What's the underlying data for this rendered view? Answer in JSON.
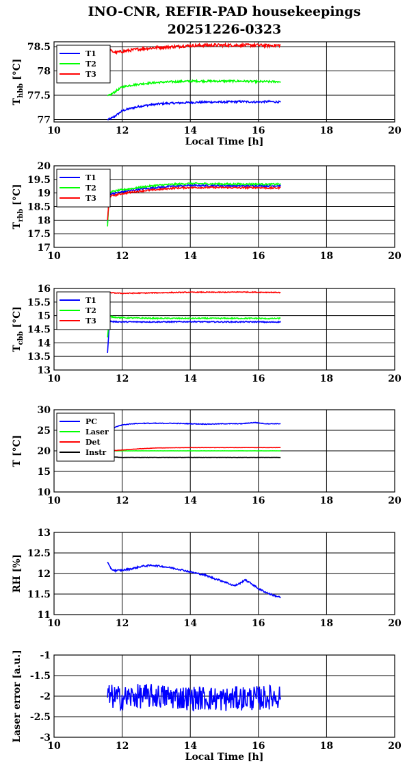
{
  "title_line1": "INO-CNR, REFIR-PAD housekeepings",
  "title_line2": "20251226-0323",
  "colors": {
    "blue": "#0000ff",
    "green": "#00ff00",
    "red": "#ff0000",
    "black": "#000000"
  },
  "chart_data": [
    {
      "type": "line",
      "ylabel_main": "T",
      "ylabel_sub": "hbb",
      "ylabel_unit": "[°C]",
      "xlabel": "Local Time [h]",
      "xlim": [
        10,
        20
      ],
      "ylim": [
        76.95,
        78.6
      ],
      "xticks": [
        "10",
        "12",
        "14",
        "16",
        "18",
        "20"
      ],
      "yticks": [
        {
          "v": 77,
          "label": "77"
        },
        {
          "v": 77.5,
          "label": "77.5"
        },
        {
          "v": 78,
          "label": "78"
        },
        {
          "v": 78.5,
          "label": "78.5"
        }
      ],
      "grid": true,
      "legend": "top-left",
      "series": [
        {
          "name": "T1",
          "color": "blue",
          "x": [
            11.57,
            11.7,
            11.85,
            12.0,
            12.2,
            12.5,
            12.8,
            13.2,
            13.6,
            14.0,
            14.5,
            15.0,
            15.5,
            16.0,
            16.3,
            16.65
          ],
          "y": [
            77.0,
            77.03,
            77.1,
            77.18,
            77.22,
            77.27,
            77.3,
            77.33,
            77.34,
            77.35,
            77.36,
            77.36,
            77.37,
            77.36,
            77.37,
            77.36
          ],
          "noise": 0.02
        },
        {
          "name": "T2",
          "color": "green",
          "x": [
            11.57,
            11.7,
            11.85,
            12.0,
            12.2,
            12.5,
            12.8,
            13.2,
            13.6,
            14.0,
            14.5,
            15.0,
            15.5,
            16.0,
            16.3,
            16.65
          ],
          "y": [
            77.48,
            77.53,
            77.6,
            77.67,
            77.7,
            77.73,
            77.75,
            77.77,
            77.78,
            77.79,
            77.79,
            77.79,
            77.79,
            77.78,
            77.78,
            77.78
          ],
          "noise": 0.02
        },
        {
          "name": "T3",
          "color": "red",
          "x": [
            11.57,
            11.65,
            11.8,
            12.0,
            12.5,
            13.0,
            13.5,
            14.0,
            14.5,
            15.0,
            15.5,
            16.0,
            16.3,
            16.65
          ],
          "y": [
            78.25,
            78.42,
            78.38,
            78.4,
            78.45,
            78.48,
            78.5,
            78.52,
            78.53,
            78.53,
            78.53,
            78.53,
            78.52,
            78.53
          ],
          "noise": 0.03
        }
      ]
    },
    {
      "type": "line",
      "ylabel_main": "T",
      "ylabel_sub": "rbb",
      "ylabel_unit": "[°C]",
      "xlabel": "",
      "xlim": [
        10,
        20
      ],
      "ylim": [
        17,
        20
      ],
      "xticks": [
        "10",
        "12",
        "14",
        "16",
        "18",
        "20"
      ],
      "yticks": [
        {
          "v": 17,
          "label": "17"
        },
        {
          "v": 17.5,
          "label": "17.5"
        },
        {
          "v": 18,
          "label": "18"
        },
        {
          "v": 18.5,
          "label": "18.5"
        },
        {
          "v": 19,
          "label": "19"
        },
        {
          "v": 19.5,
          "label": "19.5"
        },
        {
          "v": 20,
          "label": "20"
        }
      ],
      "grid": true,
      "legend": "top-left",
      "series": [
        {
          "name": "T1",
          "color": "blue",
          "x": [
            11.57,
            11.62,
            11.7,
            11.9,
            12.2,
            12.6,
            13.0,
            13.5,
            14.0,
            14.5,
            15.0,
            15.5,
            16.0,
            16.3,
            16.65
          ],
          "y": [
            17.9,
            18.95,
            18.98,
            19.02,
            19.08,
            19.15,
            19.2,
            19.25,
            19.28,
            19.27,
            19.27,
            19.26,
            19.27,
            19.26,
            19.27
          ],
          "noise": 0.03
        },
        {
          "name": "T2",
          "color": "green",
          "x": [
            11.57,
            11.62,
            11.7,
            11.9,
            12.2,
            12.6,
            13.0,
            13.5,
            14.0,
            14.5,
            15.0,
            15.5,
            16.0,
            16.3,
            16.65
          ],
          "y": [
            17.75,
            19.0,
            19.05,
            19.1,
            19.15,
            19.22,
            19.28,
            19.32,
            19.35,
            19.34,
            19.33,
            19.33,
            19.33,
            19.32,
            19.33
          ],
          "noise": 0.03
        },
        {
          "name": "T3",
          "color": "red",
          "x": [
            11.57,
            11.62,
            11.7,
            11.9,
            12.2,
            12.6,
            13.0,
            13.5,
            14.0,
            14.5,
            15.0,
            15.5,
            16.0,
            16.3,
            16.65
          ],
          "y": [
            18.0,
            18.85,
            18.9,
            18.95,
            19.02,
            19.08,
            19.12,
            19.18,
            19.2,
            19.2,
            19.2,
            19.19,
            19.2,
            19.18,
            19.19
          ],
          "noise": 0.03
        }
      ]
    },
    {
      "type": "line",
      "ylabel_main": "T",
      "ylabel_sub": "cbb",
      "ylabel_unit": "[°C]",
      "xlabel": "",
      "xlim": [
        10,
        20
      ],
      "ylim": [
        13,
        16
      ],
      "xticks": [
        "10",
        "12",
        "14",
        "16",
        "18",
        "20"
      ],
      "yticks": [
        {
          "v": 13,
          "label": "13"
        },
        {
          "v": 13.5,
          "label": "13.5"
        },
        {
          "v": 14,
          "label": "14"
        },
        {
          "v": 14.5,
          "label": "14.5"
        },
        {
          "v": 15,
          "label": "15"
        },
        {
          "v": 15.5,
          "label": "15.5"
        },
        {
          "v": 16,
          "label": "16"
        }
      ],
      "grid": true,
      "legend": "top-left",
      "series": [
        {
          "name": "T1",
          "color": "blue",
          "x": [
            11.57,
            11.63,
            11.7,
            12.0,
            12.5,
            13.0,
            13.5,
            14.0,
            14.5,
            15.0,
            15.5,
            16.0,
            16.3,
            16.65
          ],
          "y": [
            13.65,
            14.82,
            14.78,
            14.77,
            14.77,
            14.77,
            14.77,
            14.78,
            14.77,
            14.77,
            14.77,
            14.77,
            14.76,
            14.77
          ],
          "noise": 0.02
        },
        {
          "name": "T2",
          "color": "green",
          "x": [
            11.57,
            11.63,
            11.7,
            12.0,
            12.5,
            13.0,
            13.5,
            14.0,
            14.5,
            15.0,
            15.5,
            16.0,
            16.3,
            16.65
          ],
          "y": [
            14.2,
            15.0,
            14.95,
            14.92,
            14.91,
            14.9,
            14.9,
            14.9,
            14.9,
            14.9,
            14.9,
            14.9,
            14.89,
            14.9
          ],
          "noise": 0.02
        },
        {
          "name": "T3",
          "color": "red",
          "x": [
            11.57,
            12.0,
            12.5,
            13.0,
            13.5,
            14.0,
            14.5,
            15.0,
            15.5,
            16.0,
            16.3,
            16.65
          ],
          "y": [
            15.85,
            15.82,
            15.83,
            15.84,
            15.85,
            15.86,
            15.86,
            15.86,
            15.87,
            15.86,
            15.86,
            15.85
          ],
          "noise": 0.015
        }
      ]
    },
    {
      "type": "line",
      "ylabel_main": "T",
      "ylabel_sub": "",
      "ylabel_unit": "[°C]",
      "xlabel": "",
      "xlim": [
        10,
        20
      ],
      "ylim": [
        10,
        30
      ],
      "xticks": [
        "10",
        "12",
        "14",
        "16",
        "18",
        "20"
      ],
      "yticks": [
        {
          "v": 10,
          "label": "10"
        },
        {
          "v": 15,
          "label": "15"
        },
        {
          "v": 20,
          "label": "20"
        },
        {
          "v": 25,
          "label": "25"
        },
        {
          "v": 30,
          "label": "30"
        }
      ],
      "grid": true,
      "legend": "top-left",
      "series": [
        {
          "name": "PC",
          "color": "blue",
          "x": [
            11.57,
            11.8,
            12.0,
            12.3,
            12.6,
            13.0,
            13.5,
            14.0,
            14.5,
            15.0,
            15.5,
            15.9,
            16.2,
            16.65
          ],
          "y": [
            24.0,
            25.8,
            26.3,
            26.6,
            26.7,
            26.7,
            26.7,
            26.6,
            26.5,
            26.6,
            26.6,
            26.9,
            26.6,
            26.6
          ],
          "noise": 0.08
        },
        {
          "name": "Laser",
          "color": "green",
          "x": [
            11.57,
            12.0,
            13.0,
            14.0,
            15.0,
            16.0,
            16.65
          ],
          "y": [
            20.0,
            20.0,
            20.0,
            20.0,
            20.0,
            20.0,
            20.0
          ],
          "noise": 0.02
        },
        {
          "name": "Det",
          "color": "red",
          "x": [
            11.57,
            12.0,
            12.5,
            13.0,
            13.5,
            14.0,
            15.0,
            16.0,
            16.65
          ],
          "y": [
            20.0,
            20.2,
            20.5,
            20.7,
            20.75,
            20.8,
            20.8,
            20.8,
            20.8
          ],
          "noise": 0.03
        },
        {
          "name": "Instr",
          "color": "black",
          "x": [
            11.57,
            11.8,
            12.0,
            13.0,
            14.0,
            15.0,
            16.0,
            16.65
          ],
          "y": [
            18.6,
            18.5,
            18.4,
            18.4,
            18.4,
            18.4,
            18.4,
            18.4
          ],
          "noise": 0.03
        }
      ]
    },
    {
      "type": "line",
      "ylabel_main": "RH [%]",
      "ylabel_sub": "",
      "ylabel_unit": "",
      "xlabel": "",
      "xlim": [
        10,
        20
      ],
      "ylim": [
        11,
        13
      ],
      "xticks": [
        "10",
        "12",
        "14",
        "16",
        "18",
        "20"
      ],
      "yticks": [
        {
          "v": 11,
          "label": "11"
        },
        {
          "v": 11.5,
          "label": "11.5"
        },
        {
          "v": 12,
          "label": "12"
        },
        {
          "v": 12.5,
          "label": "12.5"
        },
        {
          "v": 13,
          "label": "13"
        }
      ],
      "grid": true,
      "legend": "",
      "series": [
        {
          "name": "",
          "color": "blue",
          "x": [
            11.57,
            11.62,
            11.7,
            11.8,
            12.0,
            12.3,
            12.6,
            12.9,
            13.2,
            13.5,
            13.8,
            14.1,
            14.4,
            14.7,
            15.0,
            15.3,
            15.5,
            15.6,
            15.8,
            16.0,
            16.2,
            16.4,
            16.65
          ],
          "y": [
            12.28,
            12.18,
            12.1,
            12.07,
            12.08,
            12.12,
            12.18,
            12.2,
            12.17,
            12.13,
            12.08,
            12.02,
            11.97,
            11.88,
            11.8,
            11.7,
            11.78,
            11.85,
            11.75,
            11.63,
            11.55,
            11.48,
            11.42
          ],
          "noise": 0.02
        }
      ]
    },
    {
      "type": "line",
      "ylabel_main": "Laser error [a.u.]",
      "ylabel_sub": "",
      "ylabel_unit": "",
      "xlabel": "Local Time [h]",
      "xlim": [
        10,
        20
      ],
      "ylim": [
        -3,
        -1
      ],
      "xticks": [
        "10",
        "12",
        "14",
        "16",
        "18",
        "20"
      ],
      "yticks": [
        {
          "v": -3,
          "label": "-3"
        },
        {
          "v": -2.5,
          "label": "-2.5"
        },
        {
          "v": -2,
          "label": "-2"
        },
        {
          "v": -1.5,
          "label": "-1.5"
        },
        {
          "v": -1,
          "label": "-1"
        }
      ],
      "grid": true,
      "legend": "",
      "series": [
        {
          "name": "",
          "color": "blue",
          "x": [
            11.57,
            12.0,
            12.5,
            13.0,
            13.5,
            14.0,
            14.5,
            15.0,
            15.5,
            16.0,
            16.65
          ],
          "y": [
            -2.0,
            -2.05,
            -2.0,
            -2.0,
            -2.02,
            -2.05,
            -2.05,
            -2.08,
            -2.05,
            -2.05,
            -2.0
          ],
          "noise": 0.3
        }
      ]
    }
  ]
}
